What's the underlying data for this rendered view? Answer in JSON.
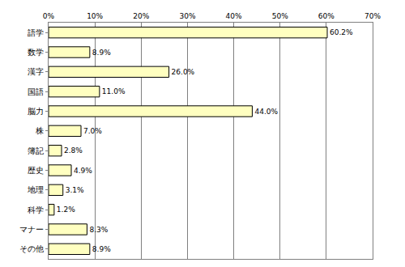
{
  "chart_data": {
    "type": "bar",
    "orientation": "horizontal",
    "categories": [
      "語学",
      "数学",
      "漢字",
      "国語",
      "脳力",
      "株",
      "簿記",
      "歴史",
      "地理",
      "科学",
      "マナー",
      "その他"
    ],
    "values": [
      60.2,
      8.9,
      26.0,
      11.0,
      44.0,
      7.0,
      2.8,
      4.9,
      3.1,
      1.2,
      8.3,
      8.9
    ],
    "value_labels": [
      "60.2%",
      "8.9%",
      "26.0%",
      "11.0%",
      "44.0%",
      "7.0%",
      "2.8%",
      "4.9%",
      "3.1%",
      "1.2%",
      "8.3%",
      "8.9%"
    ],
    "data_labels": true,
    "color": "#ffffc0",
    "xlim": [
      0,
      70
    ],
    "xticks": [
      {
        "value": 0,
        "label": "0%"
      },
      {
        "value": 10,
        "label": "10%"
      },
      {
        "value": 20,
        "label": "20%"
      },
      {
        "value": 30,
        "label": "30%"
      },
      {
        "value": 40,
        "label": "40%"
      },
      {
        "value": 50,
        "label": "50%"
      },
      {
        "value": 60,
        "label": "60%"
      },
      {
        "value": 70,
        "label": "70%"
      }
    ],
    "grid": true
  }
}
